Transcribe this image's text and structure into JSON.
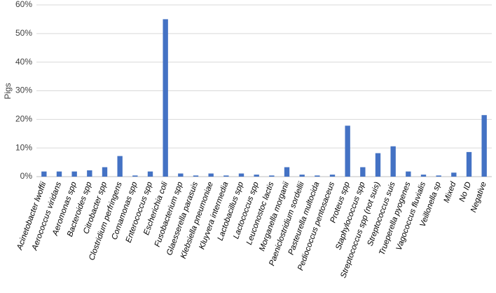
{
  "chart_data": {
    "type": "bar",
    "y_label": "Pigs",
    "categories": [
      "Acinetobacter lwoffii",
      "Aerococcus viridans",
      "Aeromonas spp",
      "Bacteroides spp",
      "Citrobacter spp",
      "Clostridium perfringens",
      "Comamonas spp",
      "Enterococcus spp",
      "Escherichia coli",
      "Fusobacterium spp",
      "Glaesserella parasuis",
      "Klebsiella pneumoniae",
      "Kluyvera intermedia",
      "Lactobacillus spp",
      "Lactococcus spp",
      "Leuconostoc lactis",
      "Morganella morganii",
      "Paeniclostridium sordellii",
      "Pasteurella multocida",
      "Pediococcus pentosaceus",
      "Proteus spp",
      "Staphylococcus spp",
      "Streptococcus spp (not suis)",
      "Streptococcus suis",
      "Trueperella pyogenes",
      "Vagococcus fluvialis",
      "Veillonella sp",
      "Mixed",
      "No ID",
      "Negative"
    ],
    "values": [
      1.8,
      1.8,
      1.8,
      2.2,
      3.3,
      7.2,
      0.4,
      1.8,
      55,
      1.1,
      0.4,
      1.1,
      0.4,
      1.1,
      0.7,
      0.4,
      3.3,
      0.7,
      0.4,
      0.7,
      17.8,
      3.3,
      8.2,
      10.6,
      1.8,
      0.7,
      0.4,
      1.4,
      8.6,
      21.5
    ],
    "color": "#4472c4",
    "ylim": [
      0,
      60
    ],
    "yticks": [
      {
        "value": 0,
        "label": "0%"
      },
      {
        "value": 10,
        "label": "10%"
      },
      {
        "value": 20,
        "label": "20%"
      },
      {
        "value": 30,
        "label": "30%"
      },
      {
        "value": 40,
        "label": "40%"
      },
      {
        "value": 50,
        "label": "50%"
      },
      {
        "value": 60,
        "label": "60%"
      }
    ],
    "grid": true
  }
}
